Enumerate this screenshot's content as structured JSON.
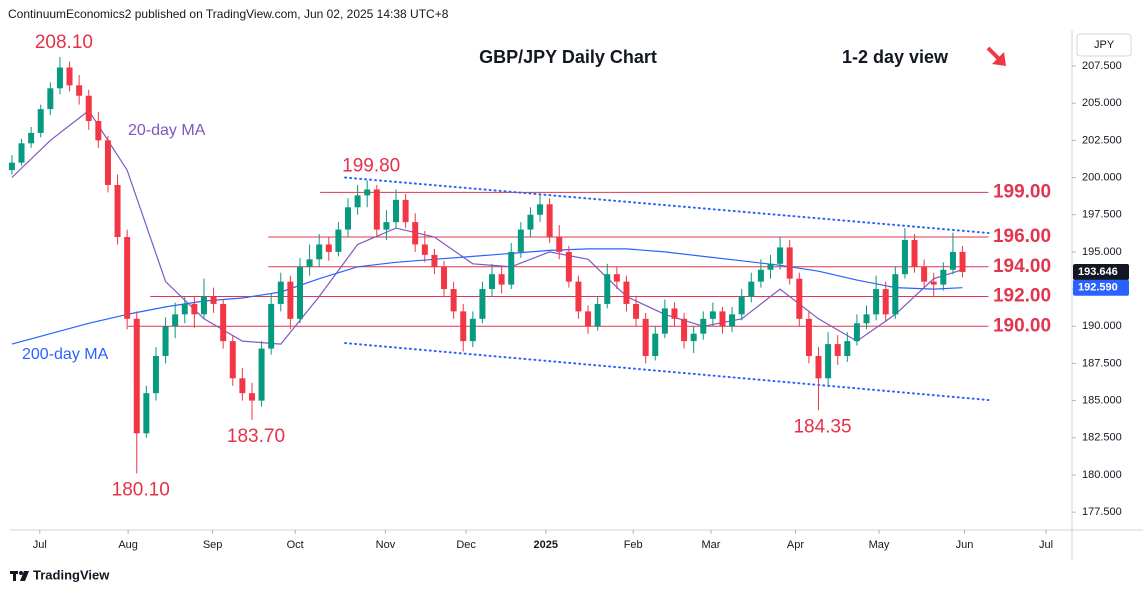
{
  "chart_data": {
    "type": "candlestick",
    "publisher": "ContinuumEconomics2 published on TradingView.com, Jun 02, 2025 14:38 UTC+8",
    "title": "GBP/JPY Daily Chart",
    "view": "1-2 day view",
    "currency": "JPY",
    "brand": "TradingView",
    "up_color": "#089981",
    "down_color": "#f23645",
    "xlim": [
      -0.2,
      110.4
    ],
    "ylim": [
      176.3,
      209.92
    ],
    "yticks": [
      {
        "value": 177.5,
        "label": "177.500"
      },
      {
        "value": 180,
        "label": "180.000"
      },
      {
        "value": 182.5,
        "label": "182.500"
      },
      {
        "value": 185,
        "label": "185.000"
      },
      {
        "value": 187.5,
        "label": "187.500"
      },
      {
        "value": 190,
        "label": "190.000"
      },
      {
        "value": 192.5,
        "label": "192.500"
      },
      {
        "value": 195,
        "label": "195.000"
      },
      {
        "value": 197.5,
        "label": "197.500"
      },
      {
        "value": 200,
        "label": "200.000"
      },
      {
        "value": 202.5,
        "label": "202.500"
      },
      {
        "value": 205,
        "label": "205.000"
      },
      {
        "value": 207.5,
        "label": "207.500"
      }
    ],
    "xticks": [
      {
        "value": 2.9,
        "label": "Jul"
      },
      {
        "value": 12.1,
        "label": "Aug"
      },
      {
        "value": 20.9,
        "label": "Sep"
      },
      {
        "value": 29.5,
        "label": "Oct"
      },
      {
        "value": 38.9,
        "label": "Nov"
      },
      {
        "value": 47.3,
        "label": "Dec"
      },
      {
        "value": 55.6,
        "label": "2025"
      },
      {
        "value": 64.7,
        "label": "Feb"
      },
      {
        "value": 72.8,
        "label": "Mar"
      },
      {
        "value": 81.6,
        "label": "Apr"
      },
      {
        "value": 90.3,
        "label": "May"
      },
      {
        "value": 99.2,
        "label": "Jun"
      },
      {
        "value": 107.7,
        "label": "Jul"
      }
    ],
    "open": [
      200.5,
      201.0,
      202.3,
      203.0,
      204.6,
      206.0,
      207.4,
      206.2,
      205.5,
      203.8,
      202.5,
      199.5,
      196.0,
      190.5,
      182.8,
      185.5,
      188.0,
      190.0,
      190.8,
      191.5,
      190.8,
      192.0,
      191.5,
      189.0,
      186.5,
      185.5,
      185.0,
      188.5,
      191.5,
      193.0,
      190.5,
      194.0,
      194.5,
      195.5,
      195.0,
      196.5,
      198.0,
      198.8,
      199.2,
      196.5,
      197.0,
      198.5,
      197.0,
      195.5,
      194.8,
      194.0,
      192.5,
      191.0,
      189.0,
      190.5,
      192.5,
      193.5,
      192.8,
      195.0,
      196.5,
      197.5,
      198.2,
      196.0,
      195.0,
      193.0,
      191.0,
      190.0,
      191.5,
      193.5,
      193.0,
      191.5,
      190.5,
      188.0,
      189.5,
      191.2,
      190.5,
      189.0,
      189.5,
      190.5,
      191.0,
      190.0,
      190.8,
      192.0,
      193.0,
      193.8,
      194.2,
      195.3,
      193.2,
      190.5,
      188.0,
      186.5,
      188.8,
      188.0,
      189.0,
      190.2,
      190.8,
      192.5,
      190.8,
      193.5,
      195.8,
      194.0,
      193.0,
      192.8,
      193.8,
      195.0
    ],
    "high": [
      201.5,
      202.6,
      203.4,
      204.9,
      206.4,
      208.1,
      207.8,
      206.9,
      205.9,
      204.4,
      202.8,
      200.2,
      196.5,
      191.0,
      186.0,
      188.6,
      190.6,
      191.6,
      192.0,
      192.0,
      193.2,
      192.6,
      191.8,
      189.4,
      187.2,
      186.2,
      189.0,
      192.2,
      193.6,
      193.4,
      194.6,
      195.5,
      196.2,
      196.0,
      197.0,
      198.6,
      199.5,
      199.8,
      199.5,
      197.8,
      199.2,
      198.9,
      197.6,
      196.4,
      195.2,
      194.4,
      193.0,
      191.5,
      191.0,
      193.0,
      194.2,
      194.0,
      195.6,
      197.0,
      198.0,
      198.9,
      198.6,
      196.8,
      195.4,
      193.4,
      191.4,
      192.0,
      194.2,
      194.0,
      193.4,
      192.0,
      190.9,
      190.0,
      191.8,
      191.6,
      190.9,
      190.0,
      191.0,
      191.6,
      191.3,
      191.3,
      192.5,
      193.6,
      194.5,
      194.8,
      196.0,
      195.8,
      193.6,
      191.0,
      188.6,
      189.6,
      189.4,
      189.6,
      190.8,
      191.4,
      193.4,
      193.0,
      194.0,
      196.6,
      196.2,
      194.5,
      193.6,
      194.3,
      196.3,
      195.4
    ],
    "low": [
      200.2,
      200.8,
      202.0,
      202.7,
      204.2,
      205.6,
      205.8,
      204.9,
      203.2,
      202.0,
      199.0,
      195.5,
      189.8,
      180.1,
      182.5,
      185.0,
      187.5,
      189.2,
      190.2,
      189.9,
      190.5,
      190.9,
      188.5,
      186.0,
      185.0,
      183.7,
      184.6,
      188.1,
      191.0,
      189.8,
      190.2,
      193.4,
      194.0,
      194.4,
      194.7,
      196.0,
      197.5,
      198.0,
      196.0,
      195.8,
      196.6,
      196.6,
      195.0,
      194.3,
      193.5,
      192.0,
      190.5,
      188.3,
      188.6,
      190.2,
      192.0,
      192.2,
      192.5,
      194.6,
      196.0,
      197.0,
      195.6,
      194.5,
      192.6,
      190.5,
      189.5,
      189.7,
      191.2,
      192.5,
      191.0,
      190.0,
      187.5,
      187.7,
      189.2,
      190.0,
      188.5,
      188.2,
      189.1,
      190.0,
      189.5,
      189.6,
      190.4,
      191.6,
      192.6,
      193.2,
      193.8,
      192.8,
      190.0,
      187.5,
      184.35,
      186.0,
      187.4,
      187.6,
      188.7,
      189.8,
      190.4,
      190.3,
      190.5,
      193.2,
      193.6,
      192.5,
      192.0,
      192.4,
      193.5,
      193.3
    ],
    "close": [
      201.0,
      202.3,
      203.0,
      204.6,
      206.0,
      207.4,
      206.2,
      205.5,
      203.8,
      202.5,
      199.5,
      196.0,
      190.5,
      182.8,
      185.5,
      188.0,
      190.0,
      190.8,
      191.5,
      190.8,
      192.0,
      191.5,
      189.0,
      186.5,
      185.5,
      185.0,
      188.5,
      191.5,
      193.0,
      190.5,
      194.0,
      194.5,
      195.5,
      195.0,
      196.5,
      198.0,
      198.8,
      199.2,
      196.5,
      197.0,
      198.5,
      197.0,
      195.5,
      194.8,
      194.0,
      192.5,
      191.0,
      189.0,
      190.5,
      192.5,
      193.5,
      192.8,
      195.0,
      196.5,
      197.5,
      198.2,
      196.0,
      195.0,
      193.0,
      191.0,
      190.0,
      191.5,
      193.5,
      193.0,
      191.5,
      190.5,
      188.0,
      189.5,
      191.2,
      190.5,
      189.0,
      189.5,
      190.5,
      191.0,
      190.0,
      190.8,
      192.0,
      193.0,
      193.8,
      194.2,
      195.3,
      193.2,
      190.5,
      188.0,
      186.5,
      188.8,
      188.0,
      189.0,
      190.2,
      190.8,
      192.5,
      190.8,
      193.5,
      195.8,
      194.0,
      193.0,
      192.8,
      193.8,
      195.0,
      193.65
    ],
    "lines": [
      {
        "name": "20-day MA",
        "color": "#7e57c2",
        "x": [
          0,
          4,
          8,
          12,
          16,
          20,
          24,
          28,
          32,
          36,
          40,
          44,
          48,
          52,
          56,
          60,
          64,
          68,
          72,
          76,
          80,
          84,
          88,
          92,
          96,
          99
        ],
        "values": [
          200.0,
          202.5,
          204.5,
          200.5,
          193.0,
          190.5,
          189.0,
          188.8,
          192.0,
          195.5,
          196.6,
          196.0,
          194.2,
          194.0,
          195.0,
          194.5,
          192.0,
          190.8,
          190.0,
          190.5,
          192.5,
          190.5,
          189.0,
          190.8,
          193.2,
          193.8
        ]
      },
      {
        "name": "200-day MA",
        "color": "#2962ff",
        "x": [
          0,
          4,
          8,
          12,
          16,
          20,
          24,
          28,
          32,
          36,
          40,
          44,
          48,
          52,
          56,
          60,
          64,
          68,
          72,
          76,
          80,
          84,
          88,
          92,
          96,
          99
        ],
        "values": [
          188.8,
          189.5,
          190.2,
          190.8,
          191.3,
          191.7,
          191.9,
          192.3,
          193.2,
          194.0,
          194.3,
          194.5,
          194.7,
          194.9,
          195.1,
          195.2,
          195.2,
          195.0,
          194.7,
          194.4,
          194.1,
          193.7,
          193.1,
          192.6,
          192.5,
          192.59
        ]
      }
    ],
    "level_color": "#e0364f",
    "levels_end": 101.7,
    "levels": [
      {
        "value": 199,
        "label": "199.00",
        "from": 32.1
      },
      {
        "value": 196,
        "label": "196.00",
        "from": 26.7
      },
      {
        "value": 194,
        "label": "194.00",
        "from": 26.7
      },
      {
        "value": 192,
        "label": "192.00",
        "from": 14.4
      },
      {
        "value": 190,
        "label": "190.00",
        "from": 12.1
      }
    ],
    "trendlines": [
      {
        "color": "#2962ff",
        "x": [
          34.7,
          101.7
        ],
        "values": [
          200.0,
          196.27
        ]
      },
      {
        "color": "#2962ff",
        "x": [
          34.7,
          101.7
        ],
        "values": [
          188.87,
          185.04
        ]
      }
    ],
    "annotations": [
      {
        "label": "208.10",
        "value": 208.1,
        "index": 5,
        "side": "above"
      },
      {
        "label": "199.80",
        "value": 199.8,
        "index": 37,
        "side": "above"
      },
      {
        "label": "180.10",
        "value": 180.1,
        "index": 13,
        "side": "below"
      },
      {
        "label": "183.70",
        "value": 183.7,
        "index": 25,
        "side": "below"
      },
      {
        "label": "184.35",
        "value": 184.35,
        "index": 84,
        "side": "below"
      }
    ],
    "price_tags": [
      {
        "value": 193.646,
        "label": "193.646",
        "color": "#131722"
      },
      {
        "value": 192.59,
        "label": "192.590",
        "color": "#2962ff"
      }
    ]
  }
}
